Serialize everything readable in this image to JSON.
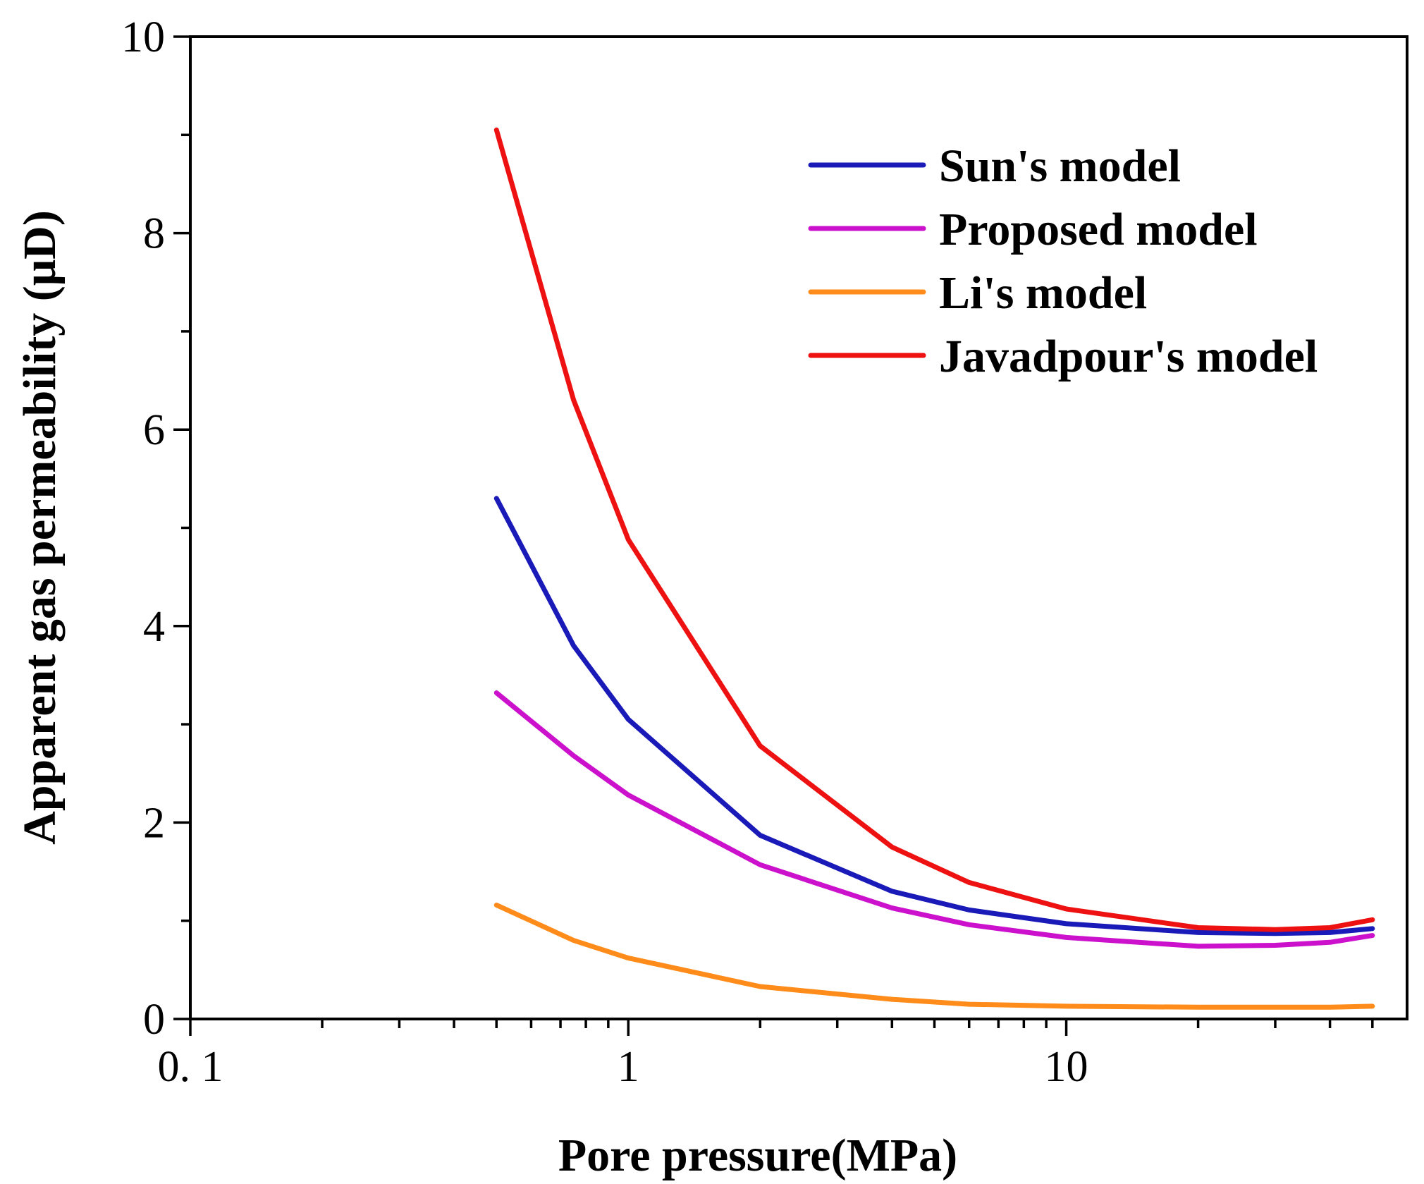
{
  "chart_data": {
    "type": "line",
    "title": "",
    "xlabel": "Pore pressure(MPa)",
    "ylabel": "Apparent gas permeability (μD)",
    "xscale": "log",
    "xlim": [
      0.1,
      60
    ],
    "ylim": [
      0,
      10
    ],
    "x_major_ticks": [
      0.1,
      1,
      10
    ],
    "x_tick_labels": [
      "0. 1",
      "1",
      "10"
    ],
    "y_major_ticks": [
      0,
      2,
      4,
      6,
      8,
      10
    ],
    "y_tick_labels": [
      "0",
      "2",
      "4",
      "6",
      "8",
      "10"
    ],
    "y_minor_ticks": [
      1,
      3,
      5,
      7,
      9
    ],
    "legend_position": "top-right",
    "series": [
      {
        "name": "Sun's model",
        "color": "#1a1ab8",
        "x": [
          0.5,
          0.75,
          1,
          2,
          4,
          6,
          10,
          20,
          30,
          40,
          50
        ],
        "y": [
          5.3,
          3.8,
          3.05,
          1.87,
          1.3,
          1.11,
          0.97,
          0.88,
          0.87,
          0.88,
          0.92
        ]
      },
      {
        "name": "Proposed model",
        "color": "#cc11cc",
        "x": [
          0.5,
          0.75,
          1,
          2,
          4,
          6,
          10,
          20,
          30,
          40,
          50
        ],
        "y": [
          3.32,
          2.68,
          2.28,
          1.57,
          1.13,
          0.96,
          0.83,
          0.74,
          0.75,
          0.78,
          0.85
        ]
      },
      {
        "name": "Li's model",
        "color": "#ff8c1a",
        "x": [
          0.5,
          0.75,
          1,
          2,
          4,
          6,
          10,
          20,
          30,
          40,
          50
        ],
        "y": [
          1.16,
          0.8,
          0.62,
          0.33,
          0.2,
          0.15,
          0.13,
          0.12,
          0.12,
          0.12,
          0.13
        ]
      },
      {
        "name": "Javadpour's model",
        "color": "#ee1111",
        "x": [
          0.5,
          0.75,
          1,
          2,
          4,
          6,
          10,
          20,
          30,
          40,
          50
        ],
        "y": [
          9.05,
          6.3,
          4.88,
          2.78,
          1.75,
          1.39,
          1.12,
          0.93,
          0.91,
          0.93,
          1.01
        ]
      }
    ]
  }
}
